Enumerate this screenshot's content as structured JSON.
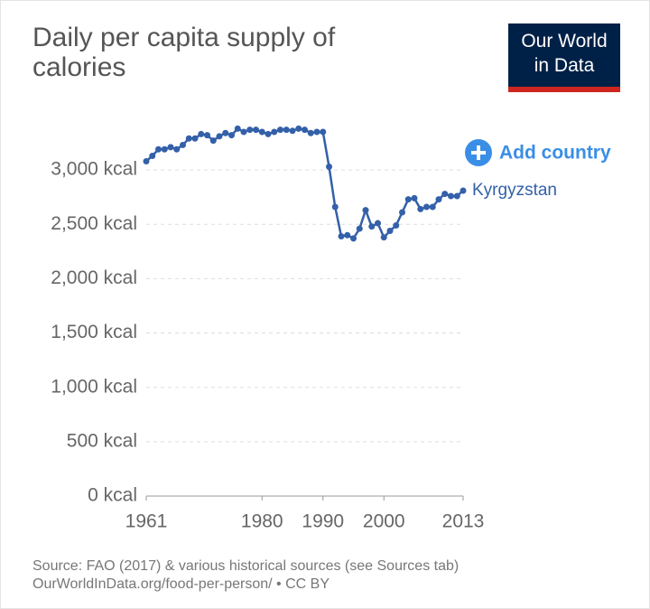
{
  "chart_data": {
    "type": "line",
    "title": "Daily per capita supply of calories",
    "logo": [
      "Our World",
      "in Data"
    ],
    "button": "Add country",
    "source": [
      "Source: FAO (2017) & various historical sources (see Sources tab)",
      "OurWorldInData.org/food-per-person/ • CC BY"
    ],
    "x": [
      1961,
      1962,
      1963,
      1964,
      1965,
      1966,
      1967,
      1968,
      1969,
      1970,
      1971,
      1972,
      1973,
      1974,
      1975,
      1976,
      1977,
      1978,
      1979,
      1980,
      1981,
      1982,
      1983,
      1984,
      1985,
      1986,
      1987,
      1988,
      1989,
      1990,
      1991,
      1992,
      1993,
      1994,
      1995,
      1996,
      1997,
      1998,
      1999,
      2000,
      2001,
      2002,
      2003,
      2004,
      2005,
      2006,
      2007,
      2008,
      2009,
      2010,
      2011,
      2012,
      2013
    ],
    "series": [
      {
        "name": "Kyrgyzstan",
        "color": "#3360a9",
        "values": [
          3080,
          3130,
          3190,
          3190,
          3210,
          3190,
          3230,
          3290,
          3290,
          3330,
          3320,
          3270,
          3310,
          3340,
          3320,
          3380,
          3350,
          3370,
          3370,
          3350,
          3330,
          3350,
          3370,
          3370,
          3360,
          3380,
          3370,
          3340,
          3350,
          3350,
          3030,
          2660,
          2390,
          2400,
          2370,
          2460,
          2630,
          2480,
          2510,
          2380,
          2440,
          2490,
          2610,
          2730,
          2740,
          2640,
          2660,
          2660,
          2730,
          2780,
          2760,
          2760,
          2810
        ]
      }
    ],
    "xlim": [
      1961,
      2013
    ],
    "xticks": [
      1961,
      1980,
      1990,
      2000,
      2013
    ],
    "ylim": [
      0,
      3400
    ],
    "yticks": [
      {
        "value": 0,
        "label": "0 kcal"
      },
      {
        "value": 500,
        "label": "500 kcal"
      },
      {
        "value": 1000,
        "label": "1,000 kcal"
      },
      {
        "value": 1500,
        "label": "1,500 kcal"
      },
      {
        "value": 2000,
        "label": "2,000 kcal"
      },
      {
        "value": 2500,
        "label": "2,500 kcal"
      },
      {
        "value": 3000,
        "label": "3,000 kcal"
      }
    ],
    "grid": true
  }
}
